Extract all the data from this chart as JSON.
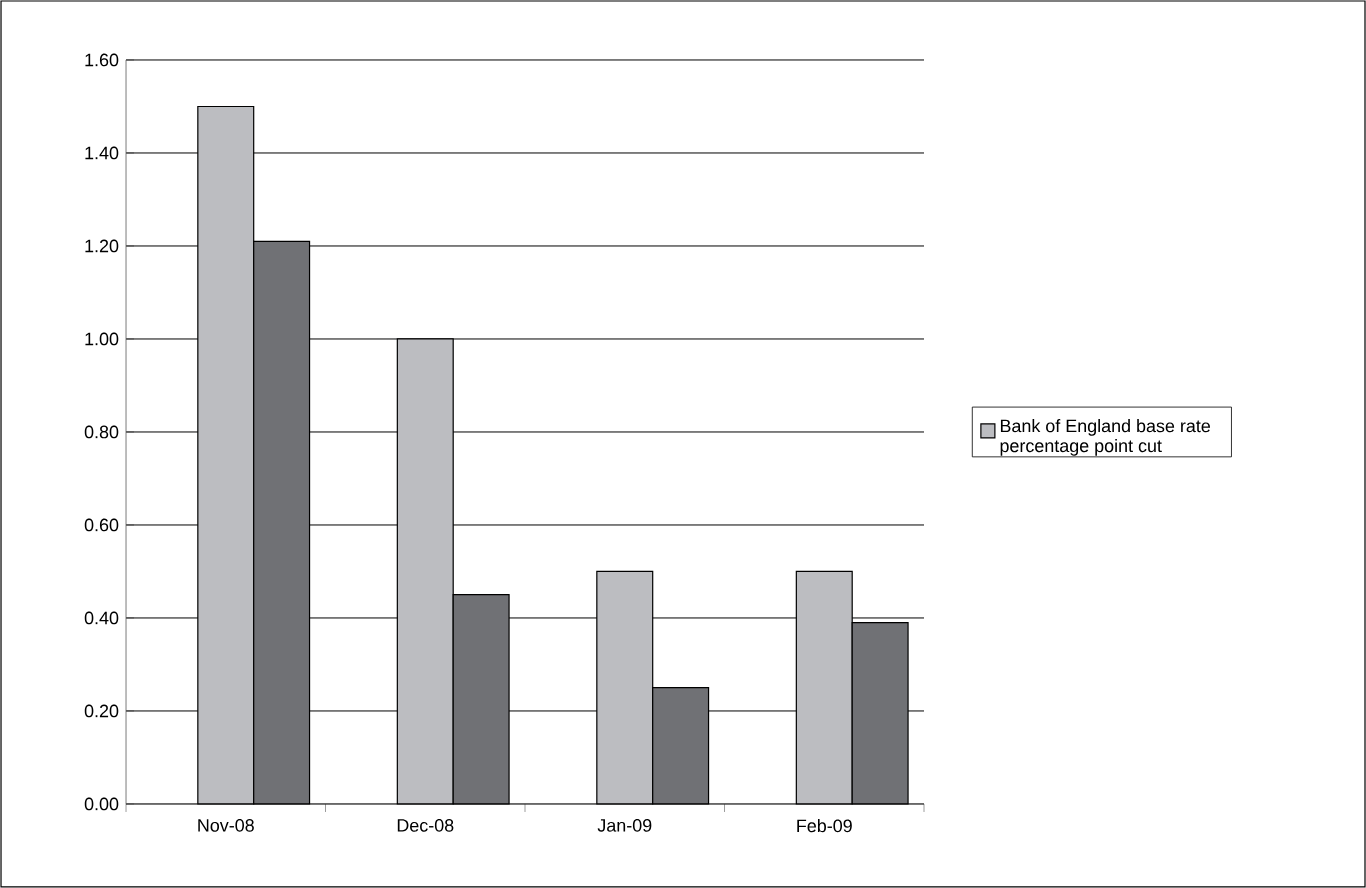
{
  "chart_data": {
    "type": "bar",
    "categories": [
      "Nov-08",
      "Dec-08",
      "Jan-09",
      "Feb-09"
    ],
    "series": [
      {
        "name": "Bank of England base rate percentage point cut",
        "color": "#bcbdc1",
        "values": [
          1.5,
          1.0,
          0.5,
          0.5
        ]
      },
      {
        "color": "#707175",
        "values": [
          1.21,
          0.45,
          0.25,
          0.39
        ]
      }
    ],
    "ylim": [
      0,
      1.6
    ],
    "yticks": [
      {
        "value": 0,
        "label": "0.00"
      },
      {
        "value": 0.2,
        "label": "0.20"
      },
      {
        "value": 0.4,
        "label": "0.40"
      },
      {
        "value": 0.6,
        "label": "0.60"
      },
      {
        "value": 0.8,
        "label": "0.80"
      },
      {
        "value": 1.0,
        "label": "1.00"
      },
      {
        "value": 1.2,
        "label": "1.20"
      },
      {
        "value": 1.4,
        "label": "1.40"
      },
      {
        "value": 1.6,
        "label": "1.60"
      }
    ],
    "grid": "y",
    "legend": "right"
  }
}
